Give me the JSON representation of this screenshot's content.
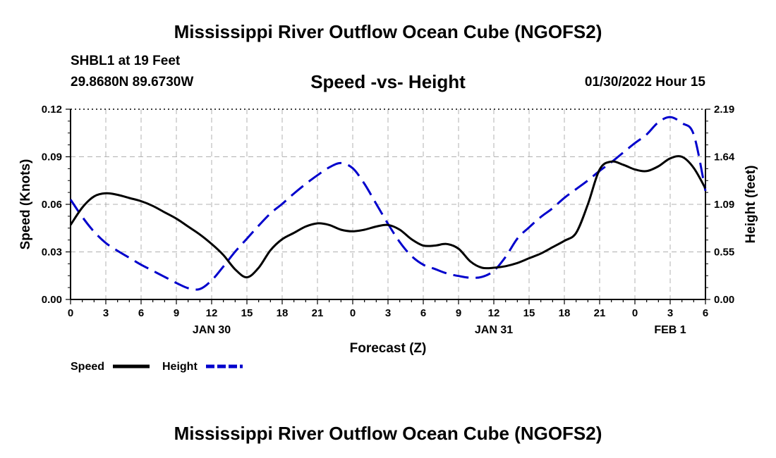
{
  "header": {
    "title_top": "Mississippi River Outflow Ocean Cube (NGOFS2)",
    "station_line": "SHBL1 at 19 Feet",
    "coords_line": "29.8680N  89.6730W",
    "plot_title": "Speed -vs- Height",
    "datetime": "01/30/2022 Hour 15"
  },
  "footer": {
    "title_bottom": "Mississippi River Outflow Ocean Cube (NGOFS2)"
  },
  "chart_data": {
    "type": "line",
    "title": "Speed -vs- Height",
    "xlabel": "Forecast (Z)",
    "ylabel_left": "Speed (Knots)",
    "ylabel_right": "Height (feet)",
    "x_unit": "hours from 00Z Jan 30",
    "xlim": [
      0,
      54
    ],
    "x_ticks": [
      0,
      3,
      6,
      9,
      12,
      15,
      18,
      21,
      24,
      27,
      30,
      33,
      36,
      39,
      42,
      45,
      48,
      51,
      54
    ],
    "x_tick_labels": [
      "0",
      "3",
      "6",
      "9",
      "12",
      "15",
      "18",
      "21",
      "0",
      "3",
      "6",
      "9",
      "12",
      "15",
      "18",
      "21",
      "0",
      "3",
      "6"
    ],
    "date_labels": [
      {
        "x": 12,
        "label": "JAN 30"
      },
      {
        "x": 36,
        "label": "JAN 31"
      },
      {
        "x": 51,
        "label": "FEB 1"
      }
    ],
    "ylim_left": [
      0,
      0.12
    ],
    "y_ticks_left": [
      "0.00",
      "0.03",
      "0.06",
      "0.09",
      "0.12"
    ],
    "ylim_right": [
      0,
      2.19
    ],
    "y_ticks_right": [
      "0.00",
      "0.55",
      "1.09",
      "1.64",
      "2.19"
    ],
    "grid": true,
    "legend_position": "bottom-left",
    "series": [
      {
        "name": "Speed",
        "axis": "left",
        "color": "#000000",
        "style": "solid",
        "points": [
          [
            0,
            0.047
          ],
          [
            1,
            0.058
          ],
          [
            2,
            0.065
          ],
          [
            3,
            0.067
          ],
          [
            4,
            0.066
          ],
          [
            5,
            0.064
          ],
          [
            6,
            0.062
          ],
          [
            7,
            0.059
          ],
          [
            8,
            0.055
          ],
          [
            9,
            0.051
          ],
          [
            10,
            0.046
          ],
          [
            11,
            0.041
          ],
          [
            12,
            0.035
          ],
          [
            13,
            0.028
          ],
          [
            14,
            0.019
          ],
          [
            15,
            0.014
          ],
          [
            16,
            0.02
          ],
          [
            17,
            0.031
          ],
          [
            18,
            0.038
          ],
          [
            19,
            0.042
          ],
          [
            20,
            0.046
          ],
          [
            21,
            0.048
          ],
          [
            22,
            0.047
          ],
          [
            23,
            0.044
          ],
          [
            24,
            0.043
          ],
          [
            25,
            0.044
          ],
          [
            26,
            0.046
          ],
          [
            27,
            0.047
          ],
          [
            28,
            0.044
          ],
          [
            29,
            0.038
          ],
          [
            30,
            0.034
          ],
          [
            31,
            0.034
          ],
          [
            32,
            0.035
          ],
          [
            33,
            0.032
          ],
          [
            34,
            0.024
          ],
          [
            35,
            0.02
          ],
          [
            36,
            0.02
          ],
          [
            37,
            0.021
          ],
          [
            38,
            0.023
          ],
          [
            39,
            0.026
          ],
          [
            40,
            0.029
          ],
          [
            41,
            0.033
          ],
          [
            42,
            0.037
          ],
          [
            43,
            0.042
          ],
          [
            44,
            0.06
          ],
          [
            45,
            0.082
          ],
          [
            46,
            0.087
          ],
          [
            47,
            0.085
          ],
          [
            48,
            0.082
          ],
          [
            49,
            0.081
          ],
          [
            50,
            0.084
          ],
          [
            51,
            0.089
          ],
          [
            52,
            0.09
          ],
          [
            53,
            0.083
          ],
          [
            54,
            0.07
          ]
        ]
      },
      {
        "name": "Height",
        "axis": "right",
        "color": "#0000cc",
        "style": "dashed",
        "points": [
          [
            0,
            1.15
          ],
          [
            1,
            0.95
          ],
          [
            2,
            0.78
          ],
          [
            3,
            0.65
          ],
          [
            4,
            0.56
          ],
          [
            5,
            0.48
          ],
          [
            6,
            0.4
          ],
          [
            7,
            0.33
          ],
          [
            8,
            0.26
          ],
          [
            9,
            0.19
          ],
          [
            10,
            0.13
          ],
          [
            11,
            0.12
          ],
          [
            12,
            0.22
          ],
          [
            13,
            0.38
          ],
          [
            14,
            0.55
          ],
          [
            15,
            0.7
          ],
          [
            16,
            0.85
          ],
          [
            17,
            0.99
          ],
          [
            18,
            1.1
          ],
          [
            19,
            1.22
          ],
          [
            20,
            1.33
          ],
          [
            21,
            1.43
          ],
          [
            22,
            1.52
          ],
          [
            23,
            1.57
          ],
          [
            24,
            1.51
          ],
          [
            25,
            1.33
          ],
          [
            26,
            1.1
          ],
          [
            27,
            0.87
          ],
          [
            28,
            0.66
          ],
          [
            29,
            0.5
          ],
          [
            30,
            0.4
          ],
          [
            31,
            0.35
          ],
          [
            32,
            0.3
          ],
          [
            33,
            0.27
          ],
          [
            34,
            0.25
          ],
          [
            35,
            0.26
          ],
          [
            36,
            0.33
          ],
          [
            37,
            0.49
          ],
          [
            38,
            0.7
          ],
          [
            39,
            0.83
          ],
          [
            40,
            0.95
          ],
          [
            41,
            1.05
          ],
          [
            42,
            1.17
          ],
          [
            43,
            1.27
          ],
          [
            44,
            1.37
          ],
          [
            45,
            1.48
          ],
          [
            46,
            1.58
          ],
          [
            47,
            1.69
          ],
          [
            48,
            1.8
          ],
          [
            49,
            1.9
          ],
          [
            50,
            2.04
          ],
          [
            51,
            2.1
          ],
          [
            52,
            2.03
          ],
          [
            53,
            1.9
          ],
          [
            54,
            1.25
          ]
        ]
      }
    ]
  }
}
